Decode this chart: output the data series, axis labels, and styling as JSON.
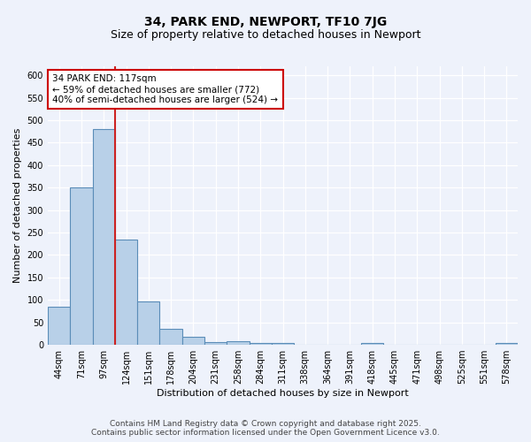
{
  "title": "34, PARK END, NEWPORT, TF10 7JG",
  "subtitle": "Size of property relative to detached houses in Newport",
  "xlabel": "Distribution of detached houses by size in Newport",
  "ylabel": "Number of detached properties",
  "categories": [
    "44sqm",
    "71sqm",
    "97sqm",
    "124sqm",
    "151sqm",
    "178sqm",
    "204sqm",
    "231sqm",
    "258sqm",
    "284sqm",
    "311sqm",
    "338sqm",
    "364sqm",
    "391sqm",
    "418sqm",
    "445sqm",
    "471sqm",
    "498sqm",
    "525sqm",
    "551sqm",
    "578sqm"
  ],
  "values": [
    85,
    350,
    480,
    235,
    97,
    36,
    18,
    7,
    9,
    5,
    4,
    0,
    0,
    0,
    5,
    0,
    0,
    0,
    0,
    0,
    4
  ],
  "bar_color": "#b8d0e8",
  "bar_edge_color": "#5b8db8",
  "red_line_index": 2,
  "annotation_text": "34 PARK END: 117sqm\n← 59% of detached houses are smaller (772)\n40% of semi-detached houses are larger (524) →",
  "annotation_box_color": "#ffffff",
  "annotation_box_edge": "#cc0000",
  "ylim": [
    0,
    620
  ],
  "yticks": [
    0,
    50,
    100,
    150,
    200,
    250,
    300,
    350,
    400,
    450,
    500,
    550,
    600
  ],
  "background_color": "#eef2fb",
  "grid_color": "#ffffff",
  "footer_line1": "Contains HM Land Registry data © Crown copyright and database right 2025.",
  "footer_line2": "Contains public sector information licensed under the Open Government Licence v3.0.",
  "title_fontsize": 10,
  "subtitle_fontsize": 9,
  "axis_label_fontsize": 8,
  "tick_fontsize": 7,
  "annotation_fontsize": 7.5,
  "footer_fontsize": 6.5
}
